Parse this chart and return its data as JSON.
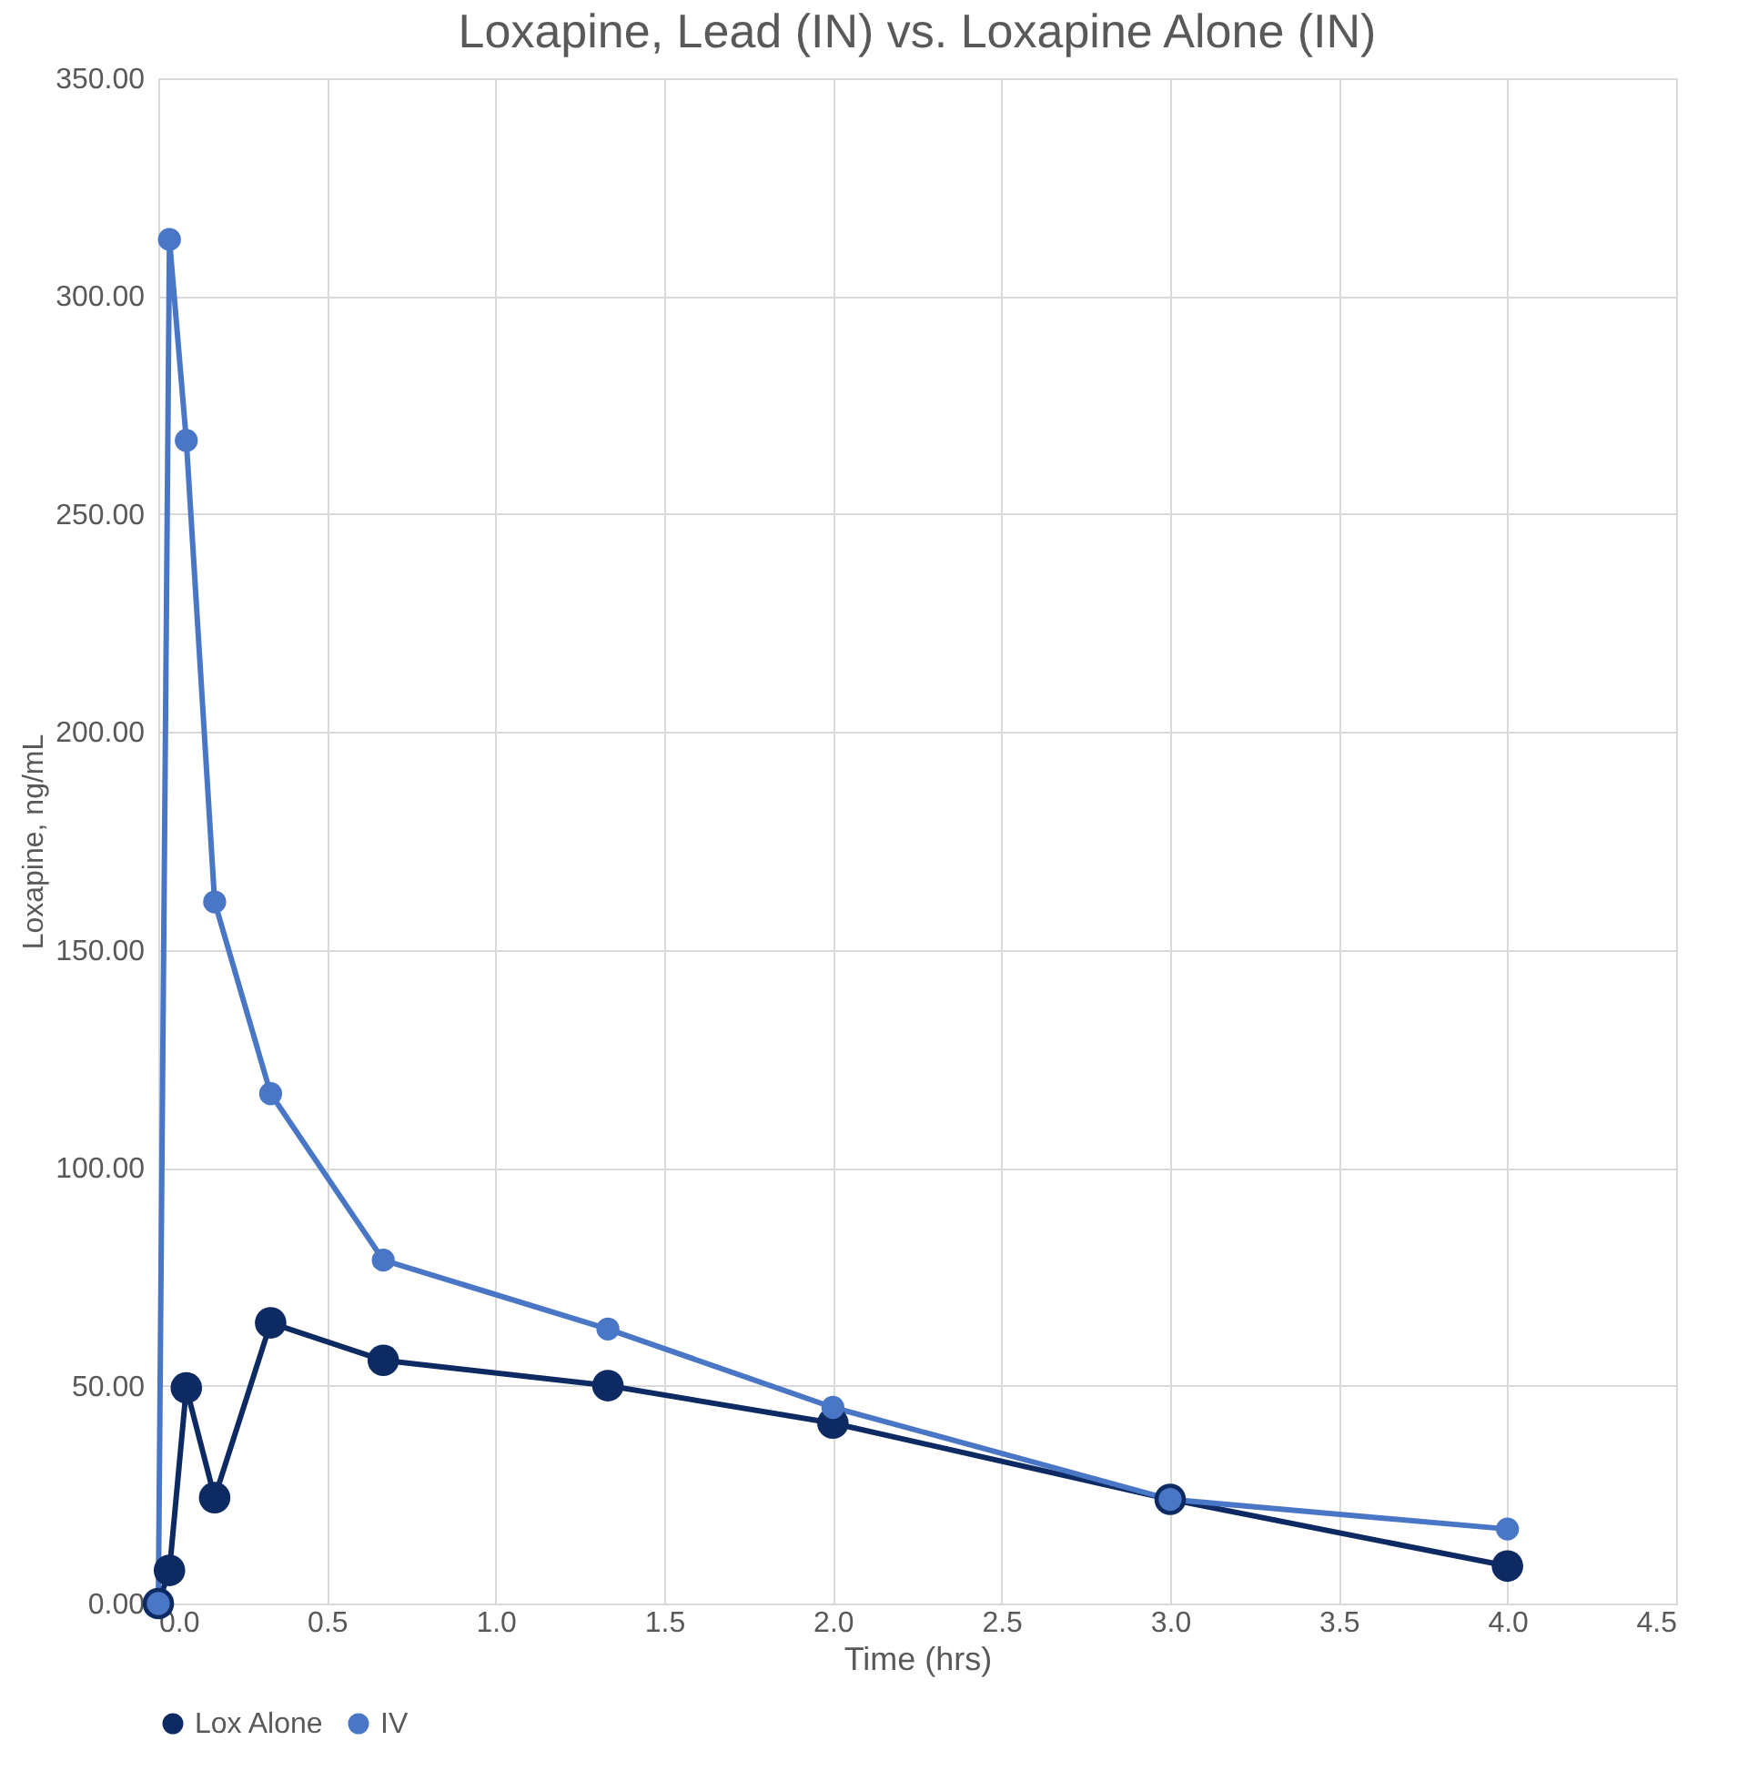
{
  "chart_data": {
    "type": "line",
    "title": "Loxapine, Lead (IN) vs. Loxapine Alone (IN)",
    "xlabel": "Time  (hrs)",
    "ylabel": "Loxapine, ng/mL",
    "x": [
      0,
      0.033,
      0.083,
      0.167,
      0.333,
      0.667,
      1.333,
      2,
      3,
      4
    ],
    "series": [
      {
        "name": "Lox Alone",
        "color": "#0e2a63",
        "values": [
          0,
          7.6,
          49.5,
          24.3,
          64.4,
          55.8,
          50,
          41.4,
          23.9,
          8.6
        ]
      },
      {
        "name": "IV",
        "color": "#4a76c6",
        "values": [
          0,
          313,
          266.9,
          161,
          117,
          78.8,
          63,
          45,
          23.9,
          17.1
        ]
      }
    ],
    "xlim": [
      0,
      4.5
    ],
    "xticks": [
      {
        "value": 0,
        "label": "0.0"
      },
      0.5,
      {
        "value": 1,
        "label": "1.0"
      },
      1.5,
      {
        "value": 2,
        "label": "2.0"
      },
      2.5,
      {
        "value": 3,
        "label": "3.0"
      },
      3.5,
      {
        "value": 4,
        "label": "4.0"
      },
      4.5
    ],
    "ylim": [
      0,
      350
    ],
    "yticks": [
      {
        "value": 0,
        "label": "0.00"
      },
      {
        "value": 50,
        "label": "50.00"
      },
      {
        "value": 100,
        "label": "100.00"
      },
      {
        "value": 150,
        "label": "150.00"
      },
      {
        "value": 200,
        "label": "200.00"
      },
      {
        "value": 250,
        "label": "250.00"
      },
      {
        "value": 300,
        "label": "300.00"
      },
      {
        "value": 350,
        "label": "350.00"
      }
    ],
    "grid": true,
    "legend": "bottom",
    "marker": "circle",
    "line_style": "solid"
  }
}
